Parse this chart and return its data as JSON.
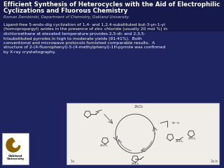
{
  "background_color": "#1e2460",
  "title_line1": "Efficient Synthesis of Heterocycles with the Aid of Electrophilic",
  "title_line2": "Cyclizations and Fluorous Chemistry",
  "author": "Roman Dembinski, Department of Chemistry, Oakland University",
  "body_text": "Ligand-free 5-endo-dig cyclization of 1,4- and 1,2,4-substituted but-3-yn-1-yl\n(homopropargyl) azides in the presence of zinc chloride (usually 20 mol %) in\ndichloroethane at elevated temperature provides 2,5-di- and 2,3,5-\ntrisubstituted pyrroles in high to moderate yields (91-41%).  Both\nconventional and microwave protocols furnished comparable results.  A\nstructure of 2-(4-fluorophenyl)-5-(4-methylphenyl)-1H-pyrrole was confirmed\nby X-ray crystallography.",
  "title_color": "#ffffff",
  "author_color": "#cccccc",
  "body_color": "#ffffff",
  "title_fontsize": 6.2,
  "author_fontsize": 4.0,
  "body_fontsize": 4.3,
  "logo_color": "#8B6000",
  "logo_text_color": "#000000",
  "logo_label": "Oakland\nUniversity",
  "scheme_bg": "#f0ede8",
  "circle_color": "#555555"
}
